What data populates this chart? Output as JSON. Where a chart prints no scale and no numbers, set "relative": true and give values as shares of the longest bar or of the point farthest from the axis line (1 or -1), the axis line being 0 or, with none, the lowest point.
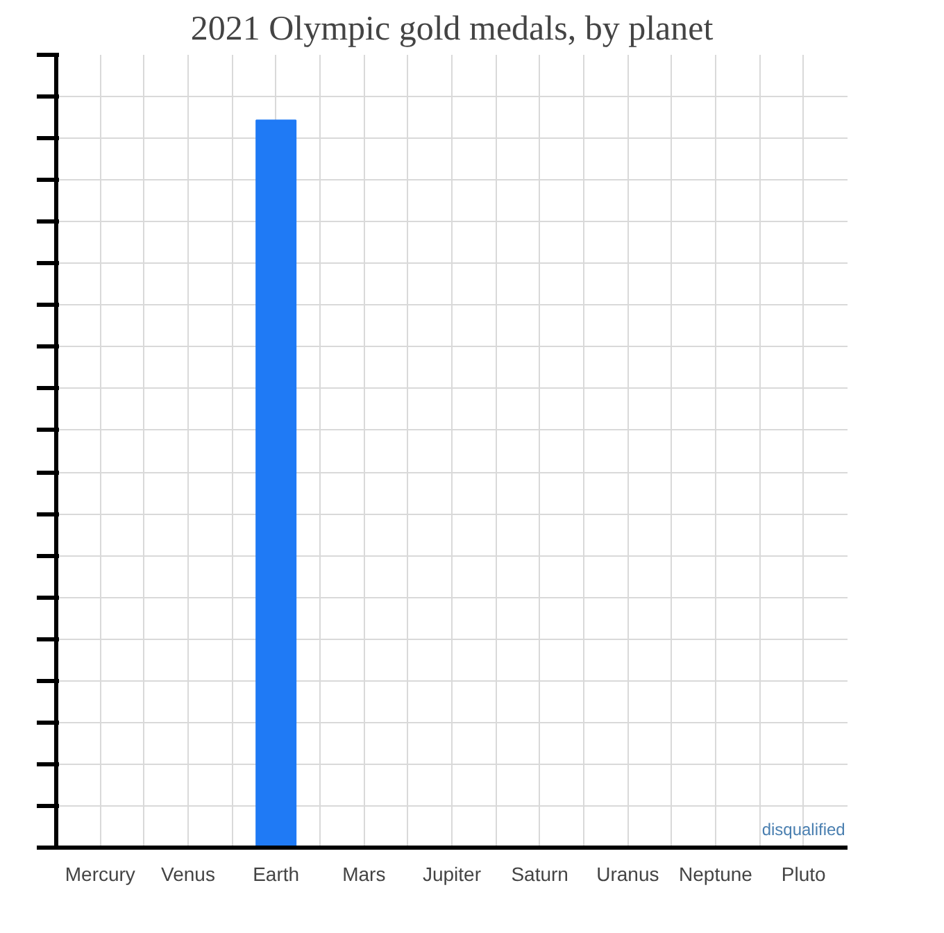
{
  "chart_data": {
    "type": "bar",
    "title": "2021 Olympic gold medals, by planet",
    "categories": [
      "Mercury",
      "Venus",
      "Earth",
      "Mars",
      "Jupiter",
      "Saturn",
      "Uranus",
      "Neptune",
      "Pluto"
    ],
    "values": [
      0,
      0,
      1,
      0,
      0,
      0,
      0,
      0,
      0
    ],
    "color": "#1f7af5",
    "relative": true,
    "grid": true,
    "annotations": [
      {
        "text": "disqualified",
        "x": "Pluto",
        "y": 0
      }
    ]
  }
}
